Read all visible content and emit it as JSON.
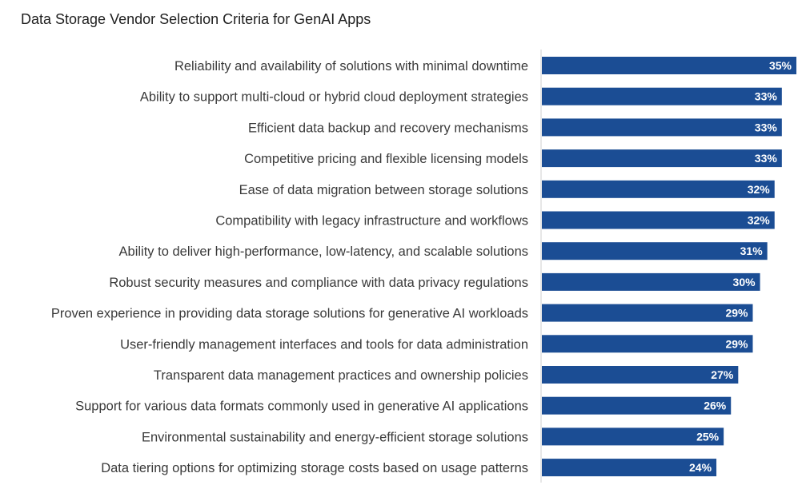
{
  "chart_data": {
    "type": "bar",
    "orientation": "horizontal",
    "title": "Data Storage Vendor Selection Criteria for GenAI Apps",
    "categories": [
      "Reliability and availability of solutions with minimal downtime",
      "Ability to support multi-cloud or hybrid cloud deployment strategies",
      "Efficient data backup and recovery mechanisms",
      "Competitive pricing and flexible licensing models",
      "Ease of data migration between storage solutions",
      "Compatibility with legacy infrastructure and workflows",
      "Ability to deliver high-performance, low-latency, and scalable solutions",
      "Robust security measures and compliance with data privacy regulations",
      "Proven experience in providing data storage solutions for generative AI workloads",
      "User-friendly management interfaces and tools for data administration",
      "Transparent data management practices and ownership policies",
      "Support for various data formats commonly used in generative AI applications",
      "Environmental sustainability and energy-efficient storage solutions",
      "Data tiering options for optimizing storage costs based on usage patterns"
    ],
    "values": [
      35,
      33,
      33,
      33,
      32,
      32,
      31,
      30,
      29,
      29,
      27,
      26,
      25,
      24
    ],
    "value_labels": [
      "35%",
      "33%",
      "33%",
      "33%",
      "32%",
      "32%",
      "31%",
      "30%",
      "29%",
      "29%",
      "27%",
      "26%",
      "25%",
      "24%"
    ],
    "xlim": [
      0,
      35
    ],
    "bar_color": "#1b4d94",
    "label_color": "#ffffff",
    "text_color": "#3a3a3a",
    "axis_color": "#cfcfcf",
    "grid": false
  }
}
